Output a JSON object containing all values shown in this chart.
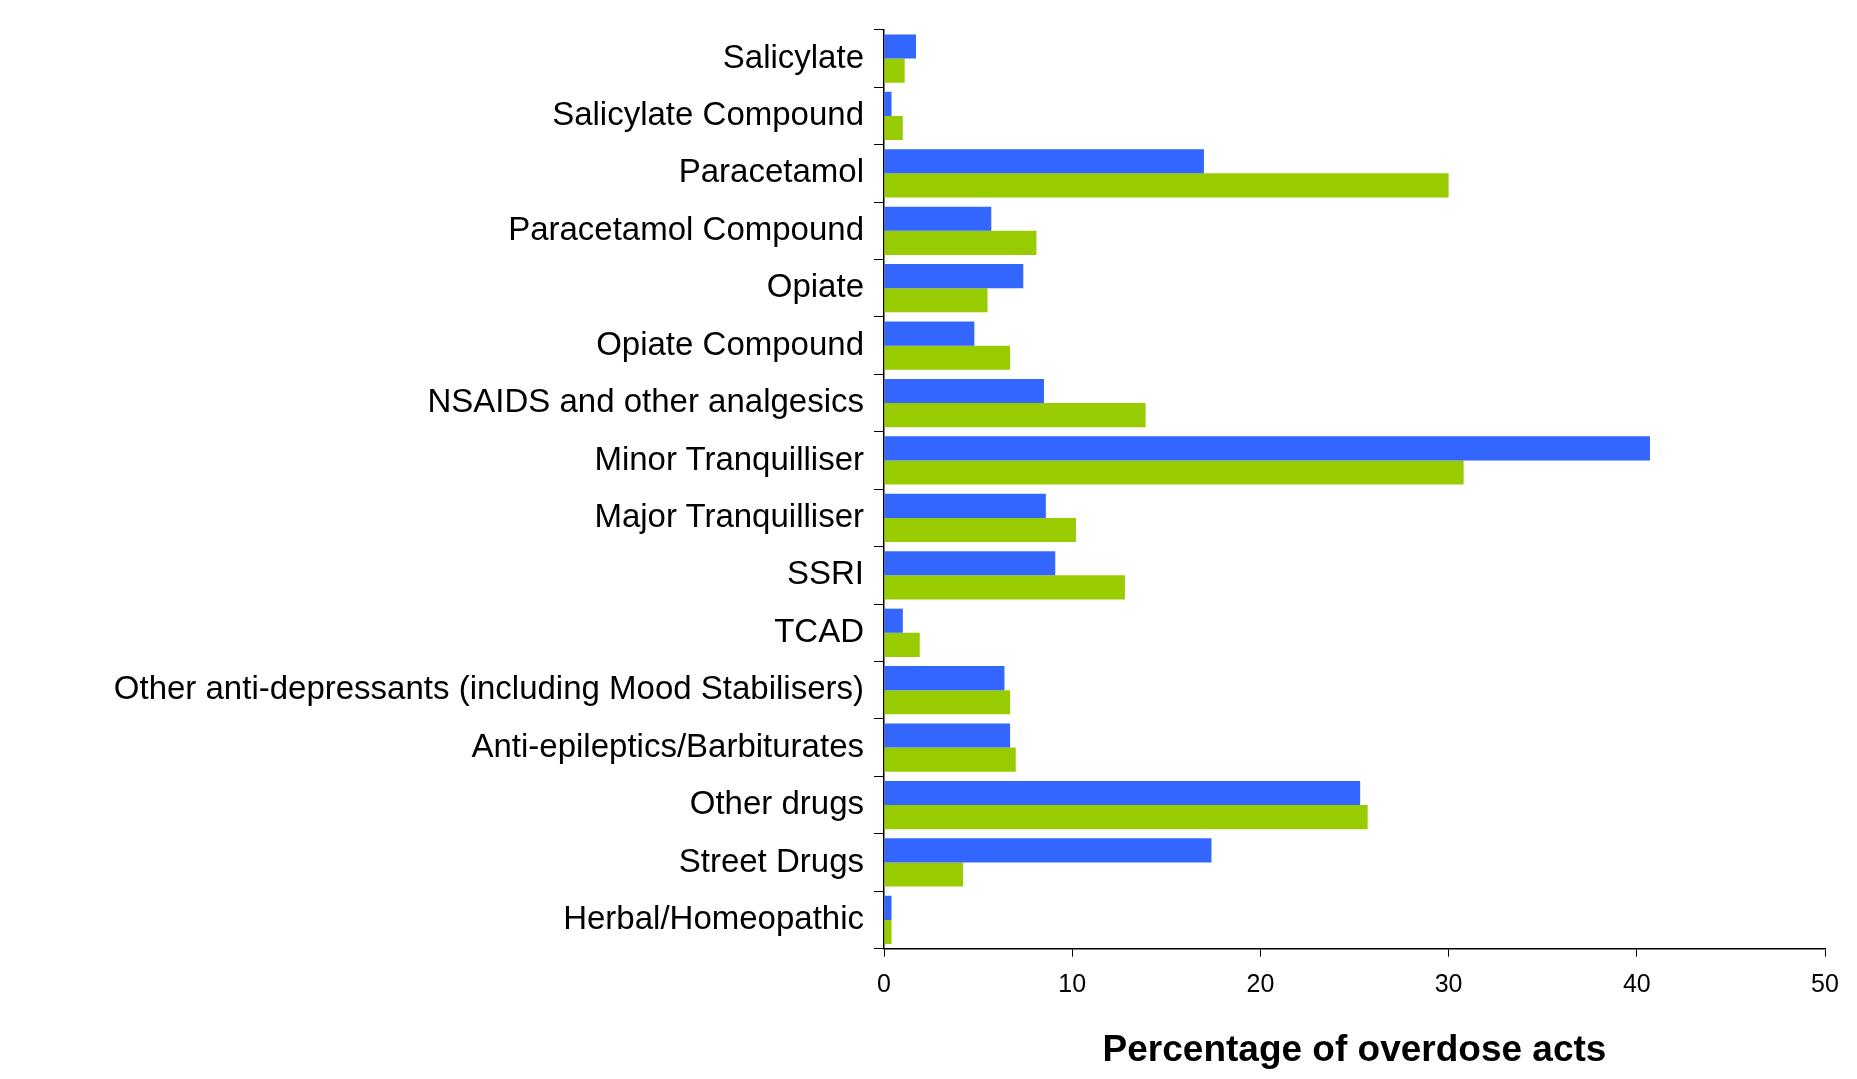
{
  "chart_data": {
    "type": "bar",
    "orientation": "horizontal",
    "xlabel": "Percentage of overdose acts",
    "categories": [
      "Salicylate",
      "Salicylate Compound",
      "Paracetamol",
      "Paracetamol Compound",
      "Opiate",
      "Opiate Compound",
      "NSAIDS and other analgesics",
      "Minor Tranquilliser",
      "Major Tranquilliser",
      "SSRI",
      "TCAD",
      "Other anti-depressants (including Mood Stabilisers)",
      "Anti-epileptics/Barbiturates",
      "Other drugs",
      "Street Drugs",
      "Herbal/Homeopathic"
    ],
    "series": [
      {
        "color": "#3366ff",
        "values": [
          1.7,
          0.4,
          17.0,
          5.7,
          7.4,
          4.8,
          8.5,
          40.7,
          8.6,
          9.1,
          1.0,
          6.4,
          6.7,
          25.3,
          17.4,
          0.4
        ]
      },
      {
        "color": "#99cc00",
        "values": [
          1.1,
          1.0,
          30.0,
          8.1,
          5.5,
          6.7,
          13.9,
          30.8,
          10.2,
          12.8,
          1.9,
          6.7,
          7.0,
          25.7,
          4.2,
          0.4
        ]
      }
    ],
    "xlim": [
      0,
      50
    ],
    "xticks": [
      0,
      10,
      20,
      30,
      40,
      50
    ],
    "grid": false,
    "legend": false
  }
}
